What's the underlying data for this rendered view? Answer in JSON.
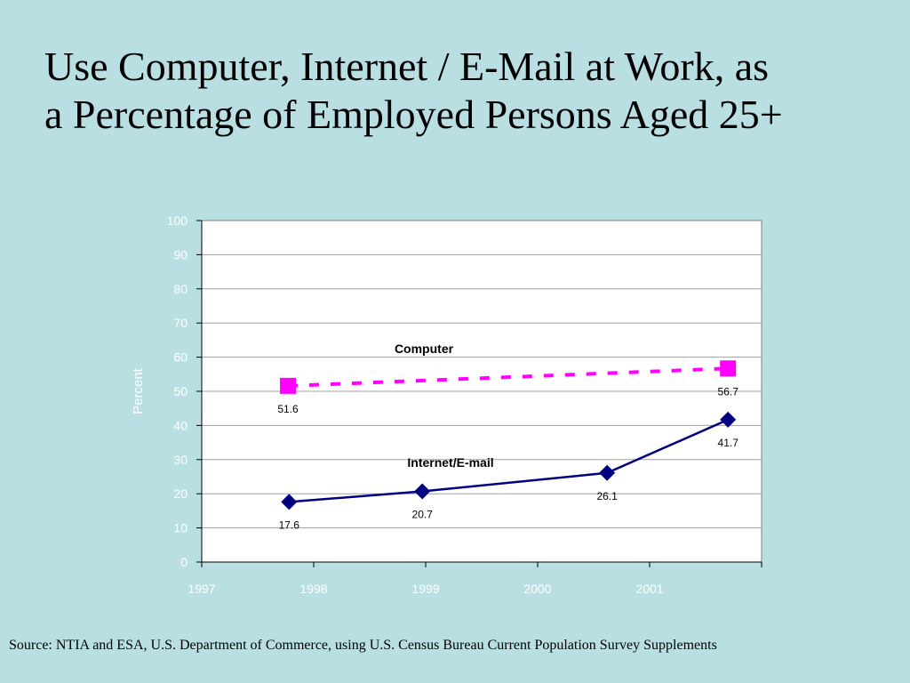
{
  "title_lines": [
    "Use Computer, Internet / E-Mail at Work, as",
    "a Percentage of Employed Persons Aged 25+"
  ],
  "source": "Source: NTIA and ESA, U.S. Department of Commerce, using U.S. Census Bureau Current Population Survey Supplements",
  "chart_data": {
    "type": "line",
    "ylabel": "Percent",
    "xlabel": "",
    "ylim": [
      0,
      100
    ],
    "yticks": [
      "0",
      "10",
      "20",
      "30",
      "40",
      "50",
      "60",
      "70",
      "80",
      "90",
      "100"
    ],
    "xlim": [
      1997,
      2002
    ],
    "xticks": [
      "1997",
      "1998",
      "1999",
      "2000",
      "2001"
    ],
    "grid": true,
    "series": [
      {
        "name": "Computer",
        "color": "#ff00ff",
        "line_style": "dashed",
        "marker": "square",
        "points": [
          {
            "x": 1997.77,
            "y": 51.6,
            "label": "51.6"
          },
          {
            "x": 2001.7,
            "y": 56.7,
            "label": "56.7"
          }
        ]
      },
      {
        "name": "Internet/E-mail",
        "color": "#000080",
        "line_style": "solid",
        "marker": "diamond",
        "points": [
          {
            "x": 1997.78,
            "y": 17.6,
            "label": "17.6"
          },
          {
            "x": 1998.97,
            "y": 20.7,
            "label": "20.7"
          },
          {
            "x": 2000.62,
            "y": 26.1,
            "label": "26.1"
          },
          {
            "x": 2001.7,
            "y": 41.7,
            "label": "41.7"
          }
        ]
      }
    ],
    "colors": {
      "axis_text": "#ffffff",
      "grid": "#a0a0a0",
      "plot_bg": "#ffffff"
    }
  }
}
